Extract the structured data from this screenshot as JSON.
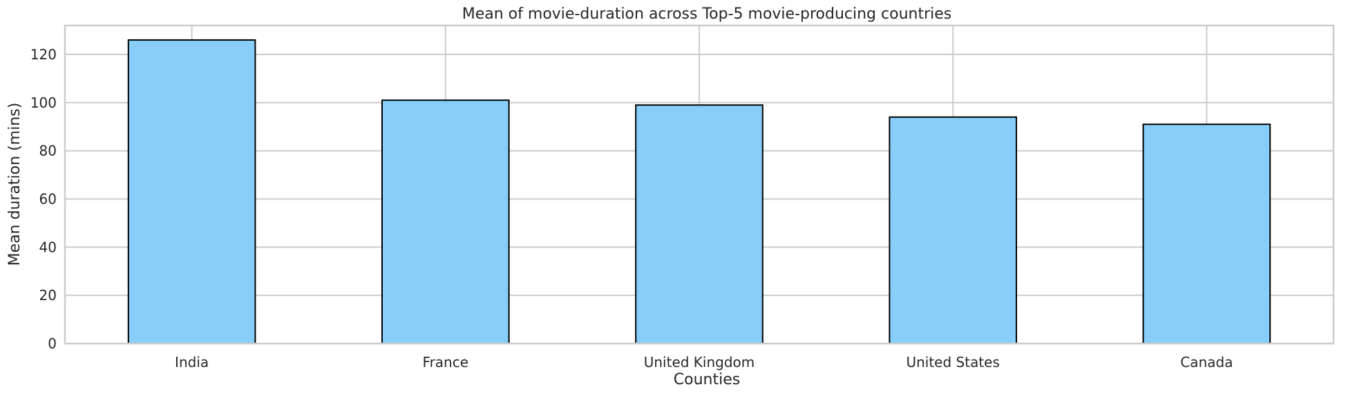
{
  "chart_data": {
    "type": "bar",
    "title": "Mean of movie-duration across Top-5 movie-producing countries",
    "xlabel": "Counties",
    "ylabel": "Mean duration (mins)",
    "categories": [
      "India",
      "France",
      "United Kingdom",
      "United States",
      "Canada"
    ],
    "values": [
      126,
      101,
      99,
      94,
      91
    ],
    "ylim": [
      0,
      132
    ],
    "yticks": [
      0,
      20,
      40,
      60,
      80,
      100,
      120
    ],
    "grid": true,
    "bar_color": "#87CEFA",
    "edge_color": "#000000",
    "grid_color": "#cccccc"
  }
}
